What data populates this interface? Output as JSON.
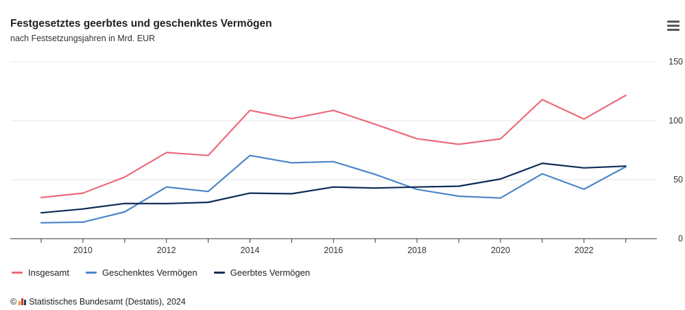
{
  "header": {
    "title": "Festgesetztes geerbtes und geschenktes Vermögen",
    "subtitle": "nach Festsetzungsjahren in Mrd. EUR"
  },
  "menu": {
    "icon": "hamburger-menu-icon"
  },
  "chart_data": {
    "type": "line",
    "title": "Festgesetztes geerbtes und geschenktes Vermögen",
    "subtitle": "nach Festsetzungsjahren in Mrd. EUR",
    "x": [
      2009,
      2010,
      2011,
      2012,
      2013,
      2014,
      2015,
      2016,
      2017,
      2018,
      2019,
      2020,
      2021,
      2022,
      2023
    ],
    "x_tick_labels": [
      "2010",
      "2012",
      "2014",
      "2016",
      "2018",
      "2020",
      "2022"
    ],
    "y_tick_labels": [
      "0",
      "50",
      "100",
      "150"
    ],
    "ylim": [
      0,
      150
    ],
    "y_axis_position": "right",
    "grid": true,
    "legend_position": "bottom-left",
    "series": [
      {
        "name": "Insgesamt",
        "color": "#ec6a7a",
        "values": [
          34.9,
          38.6,
          52.2,
          73.0,
          70.5,
          108.8,
          101.8,
          108.8,
          97.0,
          84.7,
          80.0,
          84.6,
          117.9,
          101.4,
          121.5
        ]
      },
      {
        "name": "Geschenktes Vermögen",
        "color": "#4a86c8",
        "values": [
          13.5,
          14.0,
          22.7,
          43.8,
          40.0,
          70.5,
          64.3,
          65.3,
          54.5,
          41.8,
          36.0,
          34.5,
          55.0,
          41.9,
          61.0
        ]
      },
      {
        "name": "Geerbtes Vermögen",
        "color": "#0e2a55",
        "values": [
          21.9,
          25.2,
          29.8,
          29.7,
          30.8,
          38.6,
          38.1,
          43.8,
          42.9,
          43.8,
          44.5,
          50.6,
          63.9,
          60.0,
          61.5
        ]
      }
    ]
  },
  "legend": {
    "items": [
      {
        "label": "Insgesamt",
        "color": "#ec6a7a"
      },
      {
        "label": "Geschenktes Vermögen",
        "color": "#4a86c8"
      },
      {
        "label": "Geerbtes Vermögen",
        "color": "#0e2a55"
      }
    ]
  },
  "footer": {
    "copyright_symbol": "©",
    "logo_icon": "destatis-logo-icon",
    "source": "Statistisches Bundesamt (Destatis), 2024"
  }
}
